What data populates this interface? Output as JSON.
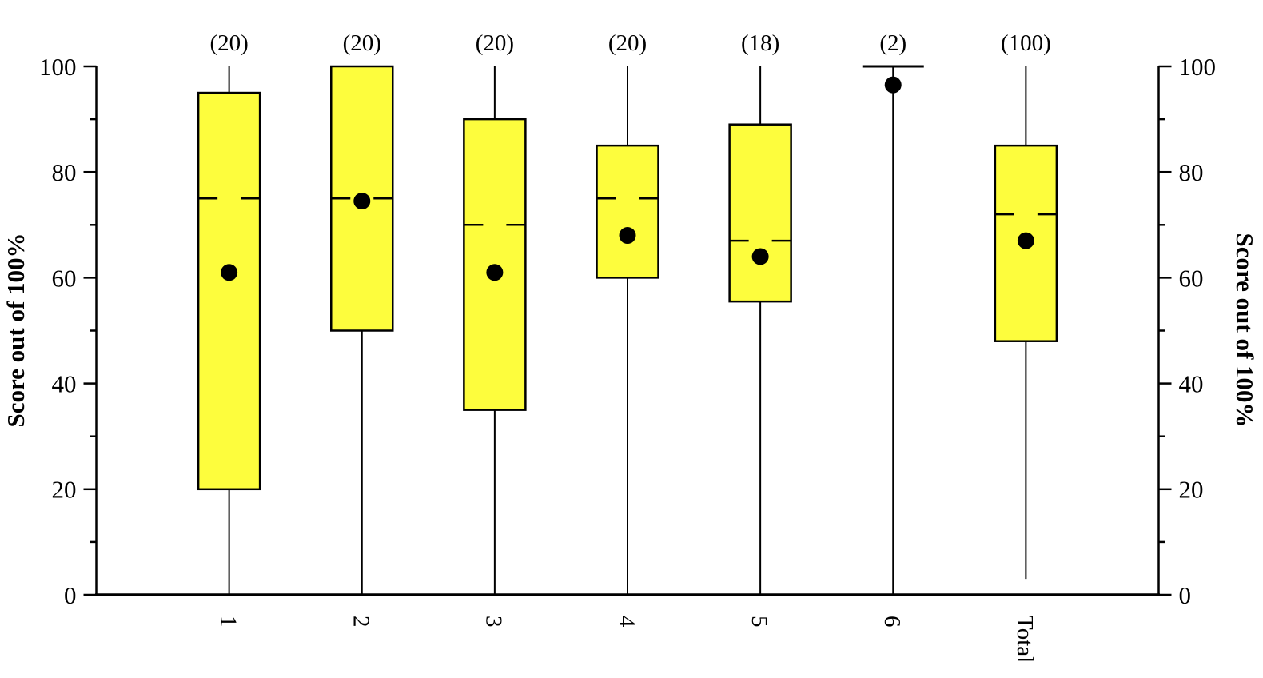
{
  "figure": {
    "background": "#ffffff",
    "y_axis_left_title": "Score out of 100%",
    "y_axis_right_title": "Score out of 100%"
  },
  "chart_data": {
    "type": "boxplot",
    "title": "",
    "xlabel": "",
    "ylabel_left": "Score out of 100%",
    "ylabel_right": "Score out of 100%",
    "ylim": [
      0,
      100
    ],
    "y_major_ticks": [
      0,
      20,
      40,
      60,
      80,
      100
    ],
    "y_minor_ticks": [
      10,
      30,
      50,
      70,
      90
    ],
    "grid": false,
    "legend": "none",
    "box_fill": "#FDFD3D",
    "line_color": "#000000",
    "categories": [
      "1",
      "2",
      "3",
      "4",
      "5",
      "6",
      "Total"
    ],
    "count_labels": [
      "(20)",
      "(20)",
      "(20)",
      "(20)",
      "(18)",
      "(2)",
      "(100)"
    ],
    "series": [
      {
        "category": "1",
        "n": 20,
        "count_label": "(20)",
        "whisker_low": 0,
        "q1": 20,
        "median": 75,
        "q3": 95,
        "whisker_high": 100,
        "mean": 61,
        "cap_high": false
      },
      {
        "category": "2",
        "n": 20,
        "count_label": "(20)",
        "whisker_low": 0,
        "q1": 50,
        "median": 75,
        "q3": 100,
        "whisker_high": 100,
        "mean": 74.5,
        "cap_high": false
      },
      {
        "category": "3",
        "n": 20,
        "count_label": "(20)",
        "whisker_low": 0,
        "q1": 35,
        "median": 70,
        "q3": 90,
        "whisker_high": 100,
        "mean": 61,
        "cap_high": false
      },
      {
        "category": "4",
        "n": 20,
        "count_label": "(20)",
        "whisker_low": 0,
        "q1": 60,
        "median": 75,
        "q3": 85,
        "whisker_high": 100,
        "mean": 68,
        "cap_high": false
      },
      {
        "category": "5",
        "n": 18,
        "count_label": "(18)",
        "whisker_low": 0,
        "q1": 55.5,
        "median": 67,
        "q3": 89,
        "whisker_high": 100,
        "mean": 64,
        "cap_high": false
      },
      {
        "category": "6",
        "n": 2,
        "count_label": "(2)",
        "whisker_low": 0,
        "q1": null,
        "median": null,
        "q3": null,
        "whisker_high": 100,
        "mean": 96.5,
        "cap_high": true
      },
      {
        "category": "Total",
        "n": 100,
        "count_label": "(100)",
        "whisker_low": 3,
        "q1": 48,
        "median": 72,
        "q3": 85,
        "whisker_high": 100,
        "mean": 67,
        "cap_high": false
      }
    ]
  }
}
